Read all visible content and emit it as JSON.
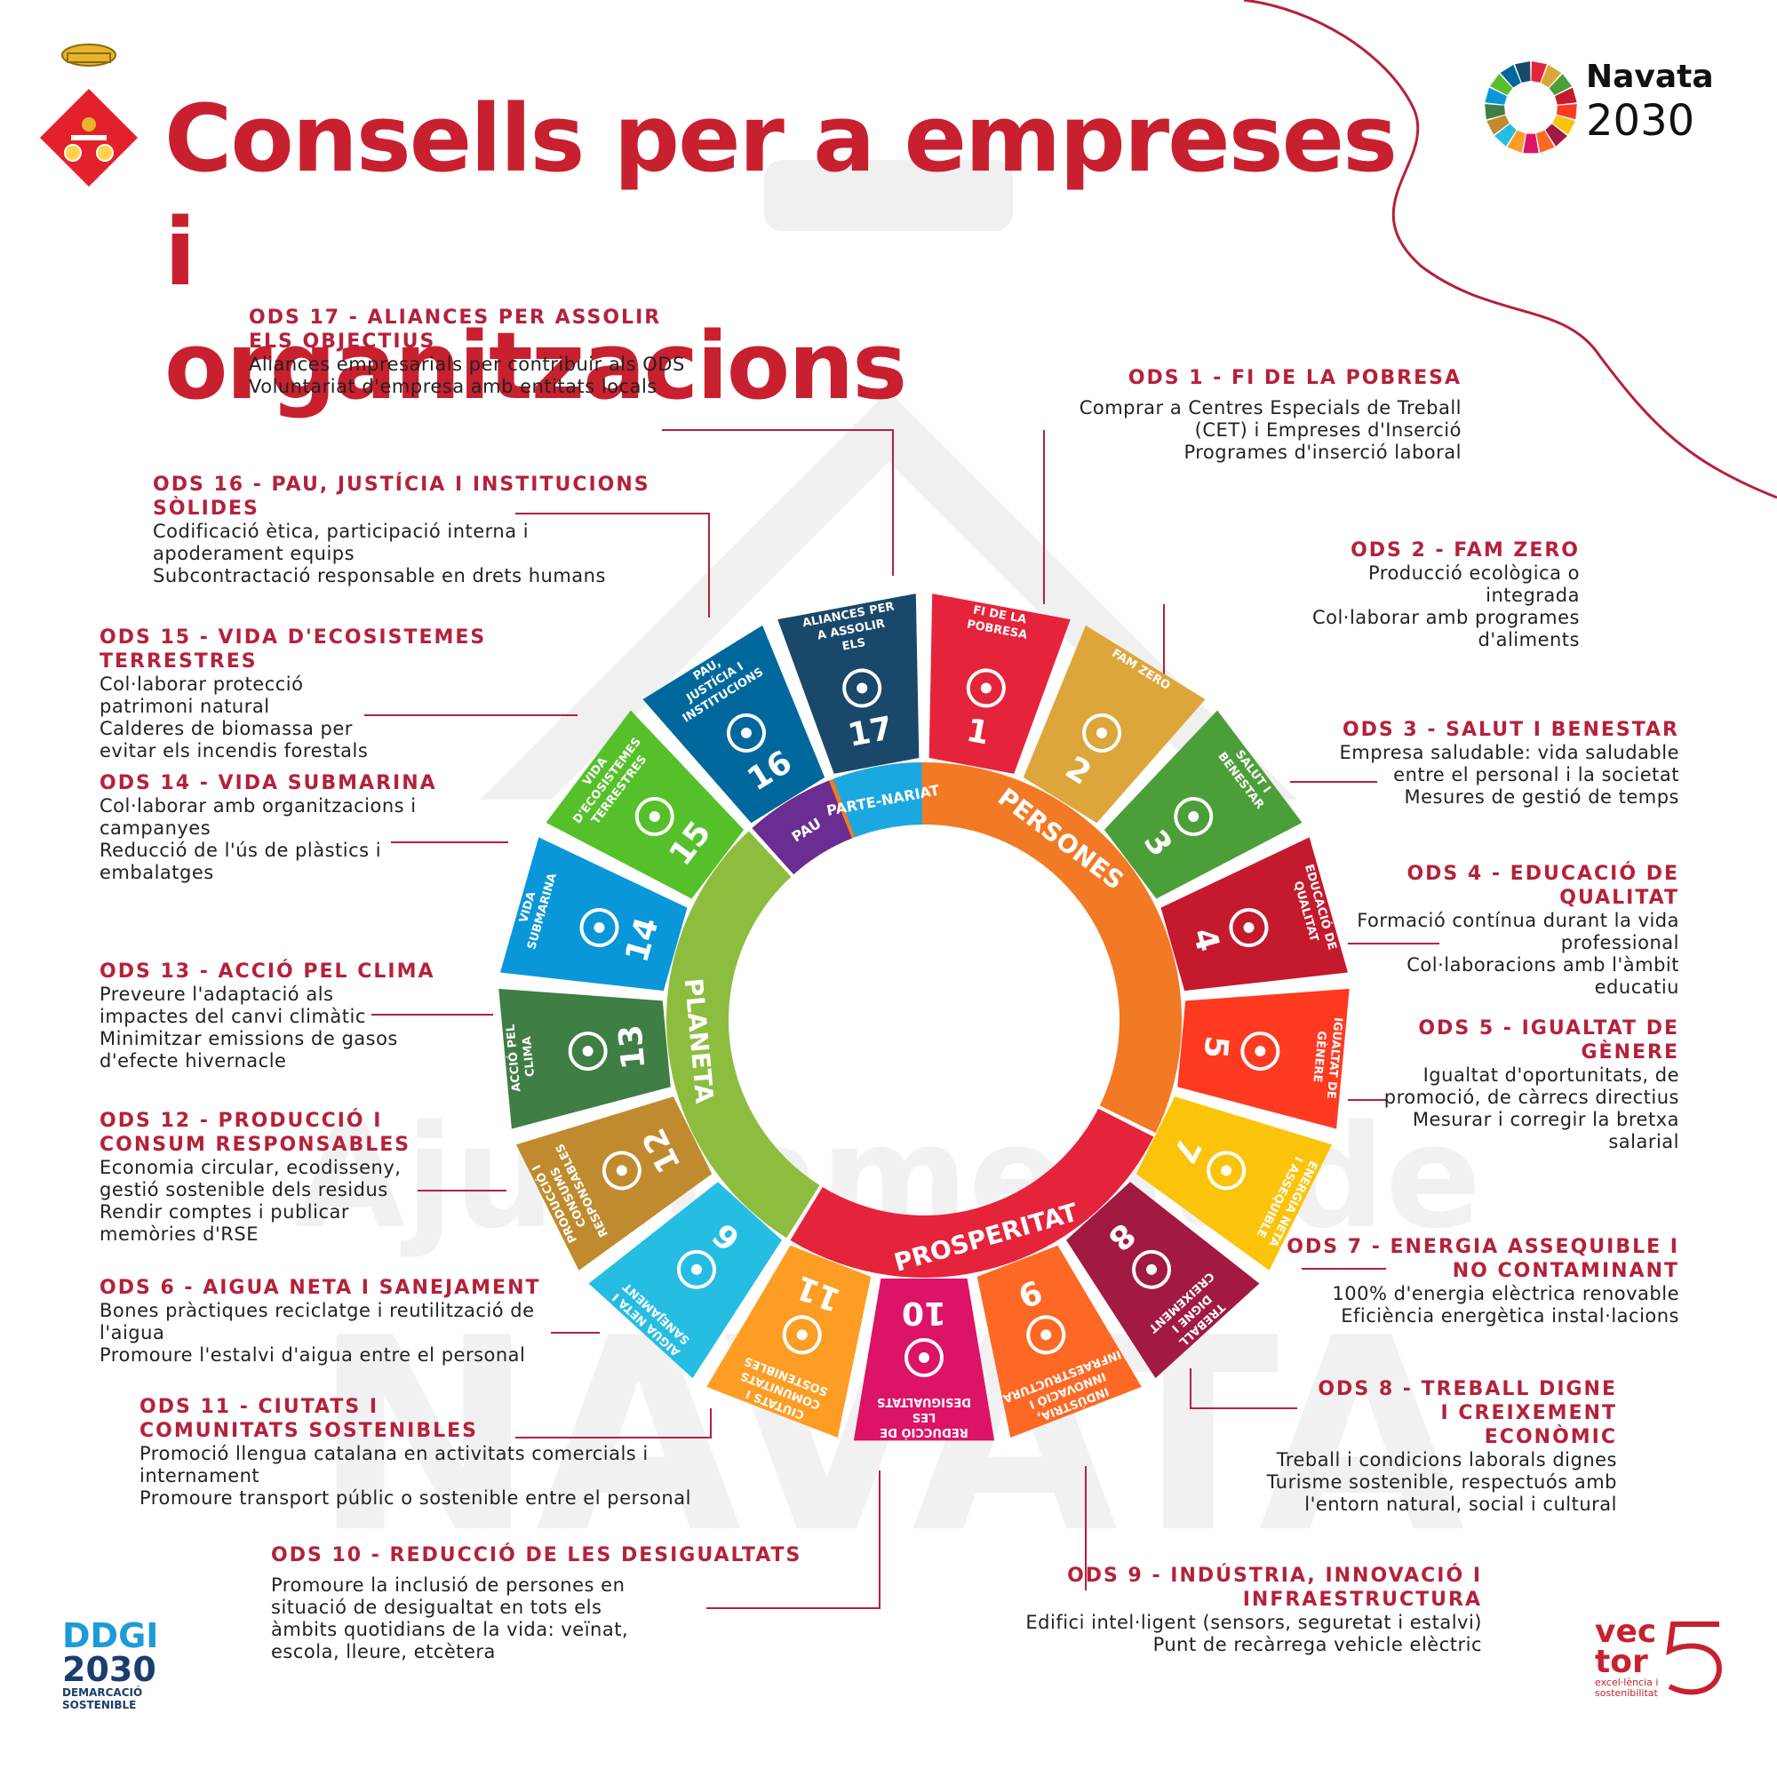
{
  "title": {
    "line1": "Consells per a empreses i",
    "line2": "organitzacions"
  },
  "brand": {
    "navata": "Navata",
    "year": "2030"
  },
  "footer": {
    "ddgi_line1": "DDGI",
    "ddgi_line2": "2030",
    "ddgi_line3": "DEMARCACIÓ",
    "ddgi_line4": "SOSTENIBLE",
    "vector_line1": "vec",
    "vector_line2": "tor",
    "vector_sub1": "excel·lència i",
    "vector_sub2": "sostenibilitat"
  },
  "watermark": {
    "line1": "Ajuntament de",
    "line2": "NAVATA"
  },
  "wheel": {
    "center_labels": {
      "persones": "PERSONES",
      "prosperitat": "PROSPERITAT",
      "planeta": "PLANETA",
      "pau": "PAU",
      "partenariat": "PARTE-NARIAT"
    },
    "goals": [
      {
        "n": "1",
        "label": "FI DE LA POBRESA",
        "color": "#e5243b",
        "icon": "family-icon"
      },
      {
        "n": "2",
        "label": "FAM ZERO",
        "color": "#dda63a",
        "icon": "bowl-icon"
      },
      {
        "n": "3",
        "label": "SALUT I BENESTAR",
        "color": "#4c9f38",
        "icon": "heartbeat-icon"
      },
      {
        "n": "4",
        "label": "EDUCACIÓ DE QUALITAT",
        "color": "#c5192d",
        "icon": "book-icon"
      },
      {
        "n": "5",
        "label": "IGUALTAT DE GÈNERE",
        "color": "#ff3a21",
        "icon": "gender-icon"
      },
      {
        "n": "7",
        "label": "ENERGIA NETA I ASSEQUIBLE",
        "color": "#fcc30b",
        "icon": "sun-icon"
      },
      {
        "n": "8",
        "label": "TREBALL DIGNE I CREIXEMENT ECONÒMIC",
        "color": "#a21942",
        "icon": "growth-icon"
      },
      {
        "n": "9",
        "label": "INDÚSTRIA, INNOVACIÓ I INFRAESTRUCTURA",
        "color": "#fd6925",
        "icon": "cubes-icon"
      },
      {
        "n": "10",
        "label": "REDUCCIÓ DE LES DESIGUALTATS",
        "color": "#dd1367",
        "icon": "equal-icon"
      },
      {
        "n": "11",
        "label": "CIUTATS I COMUNITATS SOSTENIBLES",
        "color": "#fd9d24",
        "icon": "city-icon"
      },
      {
        "n": "6",
        "label": "AIGUA NETA I SANEJAMENT",
        "color": "#26bde2",
        "icon": "water-icon"
      },
      {
        "n": "12",
        "label": "PRODUCCIÓ I CONSUMS RESPONSABLES",
        "color": "#bf8b2e",
        "icon": "infinity-icon"
      },
      {
        "n": "13",
        "label": "ACCIÓ PEL CLIMA",
        "color": "#3f7e44",
        "icon": "eye-globe-icon"
      },
      {
        "n": "14",
        "label": "VIDA SUBMARINA",
        "color": "#0a97d9",
        "icon": "fish-icon"
      },
      {
        "n": "15",
        "label": "VIDA D'ECOSISTEMES TERRESTRES",
        "color": "#56c02b",
        "icon": "tree-icon"
      },
      {
        "n": "16",
        "label": "PAU, JUSTÍCIA I INSTITUCIONS SÒLIDES",
        "color": "#00689d",
        "icon": "dove-icon"
      },
      {
        "n": "17",
        "label": "ALIANCES PER A ASSOLIR ELS OBJECTIUS",
        "color": "#19486a",
        "icon": "flower-icon"
      }
    ]
  },
  "ods": {
    "o17": {
      "h": "ODS 17  - ALIANCES PER ASSOLIR ELS OBJECTIUS",
      "t": [
        "Aliances empresarials per contribuir als ODS",
        "Voluntariat d'empresa amb entitats locals"
      ]
    },
    "o16": {
      "h": "ODS 16  - PAU, JUSTÍCIA I INSTITUCIONS SÒLIDES",
      "t": [
        "Codificació ètica, participació interna i apoderament equips",
        "Subcontractació responsable en drets humans"
      ]
    },
    "o15": {
      "h": "ODS 15  - VIDA D'ECOSISTEMES TERRESTRES",
      "t": [
        "Col·laborar protecció patrimoni natural",
        "Calderes de biomassa per evitar els incendis forestals"
      ]
    },
    "o14": {
      "h": "ODS 14  - VIDA SUBMARINA",
      "t": [
        "Col·laborar amb organitzacions i campanyes",
        "Reducció de l'ús de plàstics i embalatges"
      ]
    },
    "o13": {
      "h": "ODS 13 - ACCIÓ PEL CLIMA",
      "t": [
        "Preveure l'adaptació als impactes del canvi climàtic",
        "Minimitzar emissions de gasos d'efecte hivernacle"
      ]
    },
    "o12": {
      "h": "ODS 12 - PRODUCCIÓ I CONSUM RESPONSABLES",
      "t": [
        "Economia circular, ecodisseny, gestió sostenible dels residus",
        "Rendir comptes i publicar memòries d'RSE"
      ]
    },
    "o6": {
      "h": "ODS 6  - AIGUA NETA I SANEJAMENT",
      "t": [
        "Bones pràctiques reciclatge i reutilització de l'aigua",
        "Promoure l'estalvi d'aigua entre el personal"
      ]
    },
    "o11": {
      "h": "ODS 11 - CIUTATS I COMUNITATS SOSTENIBLES",
      "t": [
        "Promoció llengua catalana en activitats comercials i internament",
        "Promoure transport públic o sostenible entre el personal"
      ]
    },
    "o10": {
      "h": "ODS 10 - REDUCCIÓ DE LES DESIGUALTATS",
      "t": [
        "Promoure la inclusió de persones en situació de desigualtat en tots els àmbits quotidians de la vida: veïnat, escola, lleure, etcètera"
      ]
    },
    "o1": {
      "h": "ODS 1 - FI DE LA POBRESA",
      "t": [
        "Comprar a Centres Especials de Treball (CET) i Empreses d'Inserció",
        "Programes d'inserció laboral"
      ]
    },
    "o2": {
      "h": "ODS 2 - FAM ZERO",
      "t": [
        "Producció ecològica o integrada",
        "Col·laborar amb programes d'aliments"
      ]
    },
    "o3": {
      "h": "ODS 3 - SALUT I BENESTAR",
      "t": [
        "Empresa saludable: vida saludable entre el personal i la societat",
        "Mesures de gestió de temps"
      ]
    },
    "o4": {
      "h": "ODS 4 - EDUCACIÓ DE QUALITAT",
      "t": [
        "Formació contínua durant la vida professional",
        "Col·laboracions amb l'àmbit educatiu"
      ]
    },
    "o5": {
      "h": "ODS 5 - IGUALTAT  DE GÈNERE",
      "t": [
        "Igualtat d'oportunitats, de promoció, de càrrecs directius",
        "Mesurar i corregir la bretxa salarial"
      ]
    },
    "o7": {
      "h": "ODS 7 - ENERGIA ASSEQUIBLE I  NO CONTAMINANT",
      "t": [
        "100% d'energia elèctrica renovable",
        "Eficiència energètica instal·lacions"
      ]
    },
    "o8": {
      "h": "ODS 8  - TREBALL DIGNE I CREIXEMENT ECONÒMIC",
      "t": [
        "Treball i condicions laborals dignes",
        "Turisme sostenible, respectuós amb l'entorn natural, social i cultural"
      ]
    },
    "o9": {
      "h": "ODS 9 - INDÚSTRIA, INNOVACIÓ I INFRAESTRUCTURA",
      "t": [
        "Edifici intel·ligent (sensors, seguretat i estalvi)",
        "Punt de recàrrega vehicle elèctric"
      ]
    }
  }
}
